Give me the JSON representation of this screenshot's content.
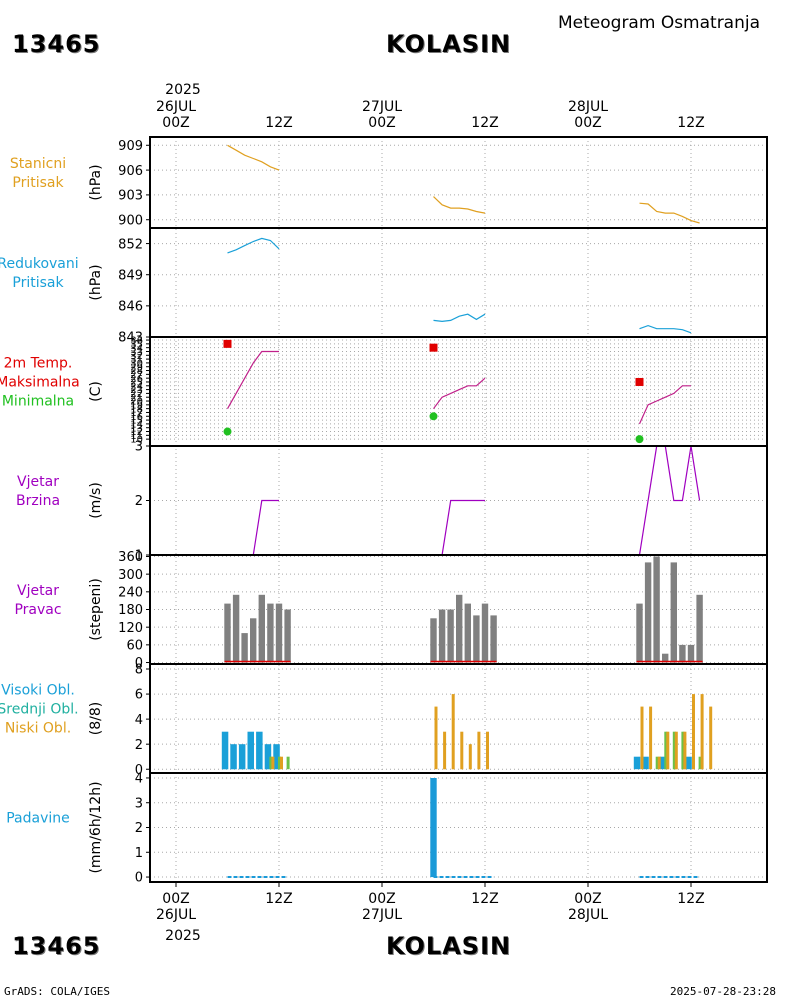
{
  "header": {
    "station_id": "13465",
    "station_name": "KOLASIN",
    "title": "Meteogram Osmatranja",
    "top_year": "2025",
    "bottom_year": "2025"
  },
  "footer": {
    "left": "GrADS: COLA/IGES",
    "right": "2025-07-28-23:28"
  },
  "time_axis": {
    "top_labels": [
      {
        "t": 0,
        "lines": [
          "26JUL",
          "00Z"
        ]
      },
      {
        "t": 12,
        "lines": [
          "12Z"
        ]
      },
      {
        "t": 24,
        "lines": [
          "27JUL",
          "00Z"
        ]
      },
      {
        "t": 36,
        "lines": [
          "12Z"
        ]
      },
      {
        "t": 48,
        "lines": [
          "28JUL",
          "00Z"
        ]
      },
      {
        "t": 60,
        "lines": [
          "12Z"
        ]
      }
    ],
    "bottom_labels": [
      {
        "t": 0,
        "lines": [
          "00Z",
          "26JUL"
        ]
      },
      {
        "t": 12,
        "lines": [
          "12Z"
        ]
      },
      {
        "t": 24,
        "lines": [
          "00Z",
          "27JUL"
        ]
      },
      {
        "t": 36,
        "lines": [
          "12Z"
        ]
      },
      {
        "t": 48,
        "lines": [
          "00Z",
          "28JUL"
        ]
      },
      {
        "t": 60,
        "lines": [
          "12Z"
        ]
      }
    ]
  },
  "colors": {
    "orange": "#e0a020",
    "cyan": "#1aa0d8",
    "red": "#e00000",
    "green": "#20c020",
    "purple": "#a000c0",
    "magenta": "#c0208a",
    "gray": "#808080",
    "teal": "#20b0a0",
    "blue": "#1a9ad8",
    "grid": "#a8a8a8"
  },
  "chart_data": [
    {
      "id": "station-pressure",
      "type": "line",
      "label_lines": [
        "Stanicni",
        "Pritisak"
      ],
      "label_color": "#e0a020",
      "unit": "(hPa)",
      "ylim": [
        899,
        910
      ],
      "yticks": [
        900,
        903,
        906,
        909
      ],
      "tick_labels": [
        "900",
        "903",
        "906",
        "909"
      ],
      "series": [
        {
          "name": "pressure",
          "color": "#e0a020",
          "segments": [
            [
              [
                6,
                909
              ],
              [
                7,
                908.4
              ],
              [
                8,
                907.8
              ],
              [
                9,
                907.4
              ],
              [
                10,
                907
              ],
              [
                11,
                906.4
              ],
              [
                12,
                906
              ]
            ],
            [
              [
                30,
                902.8
              ],
              [
                31,
                901.8
              ],
              [
                32,
                901.4
              ],
              [
                33,
                901.4
              ],
              [
                34,
                901.3
              ],
              [
                35,
                901
              ],
              [
                36,
                900.8
              ]
            ],
            [
              [
                54,
                902
              ],
              [
                55,
                901.9
              ],
              [
                56,
                901
              ],
              [
                57,
                900.8
              ],
              [
                58,
                900.8
              ],
              [
                59,
                900.4
              ],
              [
                60,
                899.9
              ],
              [
                61,
                899.6
              ]
            ]
          ]
        }
      ]
    },
    {
      "id": "reduced-pressure",
      "type": "line",
      "label_lines": [
        "Redukovani",
        "Pritisak"
      ],
      "label_color": "#1aa0d8",
      "unit": "(hPa)",
      "ylim": [
        843,
        853.5
      ],
      "yticks": [
        843,
        846,
        849,
        852
      ],
      "tick_labels": [
        "843",
        "846",
        "849",
        "852"
      ],
      "series": [
        {
          "name": "pressure",
          "color": "#1aa0d8",
          "segments": [
            [
              [
                6,
                851.1
              ],
              [
                7,
                851.4
              ],
              [
                8,
                851.8
              ],
              [
                9,
                852.2
              ],
              [
                10,
                852.5
              ],
              [
                11,
                852.3
              ],
              [
                12,
                851.5
              ]
            ],
            [
              [
                30,
                844.6
              ],
              [
                31,
                844.5
              ],
              [
                32,
                844.6
              ],
              [
                33,
                845
              ],
              [
                34,
                845.2
              ],
              [
                35,
                844.7
              ],
              [
                36,
                845.2
              ]
            ],
            [
              [
                54,
                843.8
              ],
              [
                55,
                844.1
              ],
              [
                56,
                843.8
              ],
              [
                57,
                843.8
              ],
              [
                58,
                843.8
              ],
              [
                59,
                843.7
              ],
              [
                60,
                843.4
              ]
            ]
          ]
        }
      ]
    },
    {
      "id": "temperature",
      "type": "line",
      "label_lines": [
        "2m Temp.",
        "Maksimalna",
        "Minimalna"
      ],
      "label_colors": [
        "#e00000",
        "#e00000",
        "#20c020"
      ],
      "unit": "(C)",
      "ylim": [
        8.2,
        36.8
      ],
      "yticks": [
        10,
        11,
        12,
        13,
        14,
        15,
        16,
        17,
        18,
        19,
        20,
        21,
        22,
        23,
        24,
        25,
        26,
        27,
        28,
        29,
        30,
        31,
        32,
        33,
        34,
        35,
        36
      ],
      "tick_labels": [
        "10",
        "11",
        "12",
        "13",
        "14",
        "15",
        "16",
        "17",
        "18",
        "19",
        "20",
        "21",
        "22",
        "23",
        "24",
        "25",
        "26",
        "27",
        "28",
        "29",
        "30",
        "31",
        "32",
        "33",
        "34",
        "35",
        "36"
      ],
      "series": [
        {
          "name": "2m Temp.",
          "color": "#c0208a",
          "segments": [
            [
              [
                6,
                18
              ],
              [
                7,
                22
              ],
              [
                8,
                26
              ],
              [
                9,
                30
              ],
              [
                10,
                33
              ],
              [
                11,
                33
              ],
              [
                12,
                33
              ]
            ],
            [
              [
                30,
                18
              ],
              [
                31,
                21
              ],
              [
                32,
                22
              ],
              [
                33,
                23
              ],
              [
                34,
                24
              ],
              [
                35,
                24
              ],
              [
                36,
                26
              ]
            ],
            [
              [
                54,
                14
              ],
              [
                55,
                19
              ],
              [
                56,
                20
              ],
              [
                57,
                21
              ],
              [
                58,
                22
              ],
              [
                59,
                24
              ],
              [
                60,
                24
              ]
            ]
          ]
        }
      ],
      "markers": [
        {
          "name": "Maksimalna",
          "shape": "square",
          "color": "#e00000",
          "points": [
            [
              6,
              35
            ],
            [
              30,
              34
            ],
            [
              54,
              25
            ]
          ]
        },
        {
          "name": "Minimalna",
          "shape": "circle",
          "color": "#20c020",
          "points": [
            [
              6,
              12
            ],
            [
              30,
              16
            ],
            [
              54,
              10
            ]
          ]
        }
      ]
    },
    {
      "id": "wind-speed",
      "type": "line",
      "label_lines": [
        "Vjetar",
        "Brzina"
      ],
      "label_color": "#a000c0",
      "unit": "(m/s)",
      "ylim": [
        1,
        3
      ],
      "yticks": [
        1,
        2,
        3
      ],
      "tick_labels": [
        "1",
        "2",
        "3"
      ],
      "series": [
        {
          "name": "speed",
          "color": "#a000c0",
          "segments": [
            [
              [
                6,
                1
              ],
              [
                7,
                1
              ],
              [
                8,
                1
              ],
              [
                9,
                1
              ],
              [
                10,
                2
              ],
              [
                11,
                2
              ],
              [
                12,
                2
              ]
            ],
            [
              [
                30,
                1
              ],
              [
                31,
                1
              ],
              [
                32,
                2
              ],
              [
                33,
                2
              ],
              [
                34,
                2
              ],
              [
                35,
                2
              ],
              [
                36,
                2
              ]
            ],
            [
              [
                54,
                1
              ],
              [
                55,
                2
              ],
              [
                56,
                3
              ],
              [
                57,
                3
              ],
              [
                58,
                2
              ],
              [
                59,
                2
              ],
              [
                60,
                3
              ],
              [
                61,
                2
              ]
            ]
          ]
        }
      ]
    },
    {
      "id": "wind-direction",
      "type": "bar",
      "label_lines": [
        "Vjetar",
        "Pravac"
      ],
      "label_color": "#a000c0",
      "unit": "(stepeni)",
      "ylim": [
        -5,
        365
      ],
      "yticks": [
        0,
        60,
        120,
        180,
        240,
        300,
        360
      ],
      "tick_labels": [
        "0",
        "60",
        "120",
        "180",
        "240",
        "300",
        "360"
      ],
      "series": [
        {
          "name": "direction",
          "color": "#808080",
          "bar_width": 0.75,
          "points": [
            [
              6,
              200
            ],
            [
              7,
              230
            ],
            [
              8,
              100
            ],
            [
              9,
              150
            ],
            [
              10,
              230
            ],
            [
              11,
              200
            ],
            [
              12,
              200
            ],
            [
              13,
              180
            ],
            [
              30,
              150
            ],
            [
              31,
              180
            ],
            [
              32,
              180
            ],
            [
              33,
              230
            ],
            [
              34,
              200
            ],
            [
              35,
              160
            ],
            [
              36,
              200
            ],
            [
              37,
              160
            ],
            [
              54,
              200
            ],
            [
              55,
              340
            ],
            [
              56,
              360
            ],
            [
              57,
              30
            ],
            [
              58,
              340
            ],
            [
              59,
              60
            ],
            [
              60,
              60
            ],
            [
              61,
              230
            ]
          ]
        }
      ],
      "baseline": {
        "color": "#e00000",
        "segments": [
          [
            6,
            13
          ],
          [
            30,
            37
          ],
          [
            54,
            61
          ]
        ]
      }
    },
    {
      "id": "cloud-cover",
      "type": "bar",
      "label_lines": [
        "Visoki Obl.",
        "Srednji Obl.",
        "Niski Obl."
      ],
      "label_colors": [
        "#1aa0d8",
        "#20b0a0",
        "#e0a020"
      ],
      "unit": "(8/8)",
      "ylim": [
        -0.3,
        8.4
      ],
      "yticks": [
        0,
        2,
        4,
        6,
        8
      ],
      "tick_labels": [
        "0",
        "2",
        "4",
        "6",
        "8"
      ],
      "series": [
        {
          "name": "Visoki Obl.",
          "color": "#1aa0d8",
          "points": [
            [
              6,
              3
            ],
            [
              7,
              2
            ],
            [
              8,
              2
            ],
            [
              9,
              3
            ],
            [
              10,
              3
            ],
            [
              11,
              2
            ],
            [
              12,
              2
            ],
            [
              54,
              1
            ],
            [
              55,
              1
            ],
            [
              57,
              1
            ],
            [
              60,
              1
            ]
          ]
        },
        {
          "name": "Srednji Obl.",
          "color": "#6cc048",
          "points": [
            [
              11,
              1
            ],
            [
              12,
              1
            ],
            [
              13,
              1
            ],
            [
              56,
              1
            ],
            [
              57,
              3
            ],
            [
              58,
              3
            ],
            [
              59,
              3
            ],
            [
              61,
              1
            ]
          ]
        },
        {
          "name": "Niski Obl.",
          "color": "#e0a020",
          "points": [
            [
              11,
              1
            ],
            [
              12,
              1
            ],
            [
              30,
              5
            ],
            [
              31,
              3
            ],
            [
              32,
              6
            ],
            [
              33,
              3
            ],
            [
              34,
              2
            ],
            [
              35,
              3
            ],
            [
              36,
              3
            ],
            [
              54,
              5
            ],
            [
              55,
              5
            ],
            [
              56,
              1
            ],
            [
              57,
              3
            ],
            [
              58,
              3
            ],
            [
              59,
              3
            ],
            [
              60,
              6
            ],
            [
              61,
              6
            ],
            [
              62,
              5
            ]
          ]
        }
      ]
    },
    {
      "id": "precipitation",
      "type": "bar",
      "label_lines": [
        "Padavine"
      ],
      "label_color": "#1aa0d8",
      "unit": "(mm/6h/12h)",
      "ylim": [
        -0.2,
        4.2
      ],
      "yticks": [
        0,
        1,
        2,
        3,
        4
      ],
      "tick_labels": [
        "0",
        "1",
        "2",
        "3",
        "4"
      ],
      "series": [
        {
          "name": "precip",
          "color": "#1a9ad8",
          "bar_width": 0.75,
          "points": [
            [
              30,
              4
            ]
          ]
        },
        {
          "name": "trace",
          "color": "#1a9ad8",
          "segments": [
            [
              6,
              13
            ],
            [
              30,
              37
            ],
            [
              54,
              61
            ]
          ]
        }
      ]
    }
  ]
}
